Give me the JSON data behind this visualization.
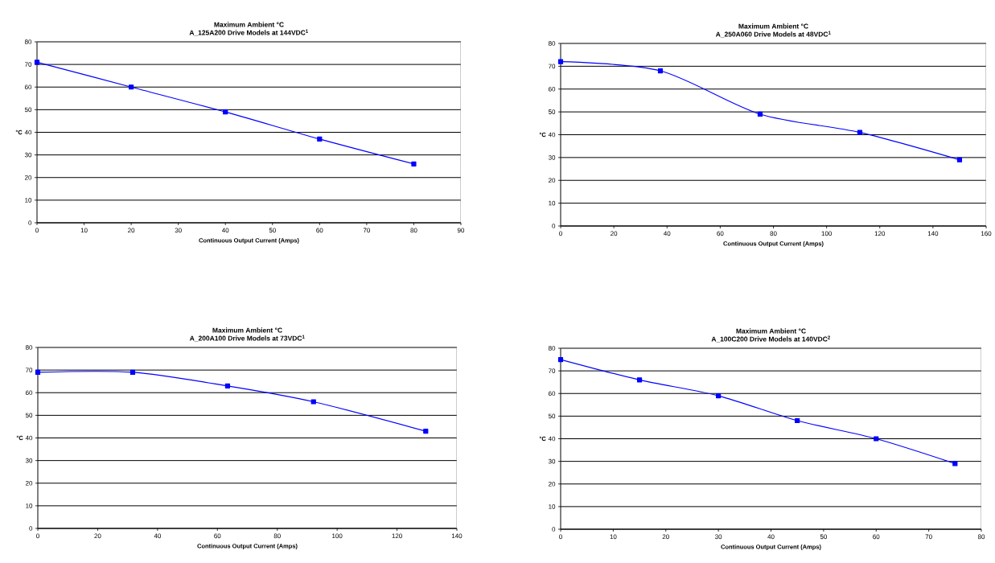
{
  "chart_data": [
    {
      "type": "line",
      "title": "Maximum Ambient °C",
      "subtitle": "A_125A200 Drive Models at 144VDC$^{1}$",
      "xlabel": "Continuous Output Current (Amps)",
      "ylabel": "°C",
      "x": [
        0,
        20,
        40,
        60,
        80
      ],
      "series": [
        {
          "color": "#0000ff",
          "values": [
            71,
            60,
            49,
            37,
            26
          ]
        }
      ],
      "xlim": [
        0,
        90
      ],
      "xticks": [
        0,
        10,
        20,
        30,
        40,
        50,
        60,
        70,
        80,
        90
      ],
      "ylim": [
        0,
        80
      ],
      "yticks": [
        0,
        10,
        20,
        30,
        40,
        50,
        60,
        70,
        80
      ],
      "grid": "y",
      "marker": "square"
    },
    {
      "type": "line",
      "title": "Maximum Ambient °C",
      "subtitle": "A_250A060 Drive Models at 48VDC$^{1}$",
      "xlabel": "Continuous Output Current (Amps)",
      "ylabel": "°C",
      "x": [
        0,
        37.5,
        75,
        112.5,
        150
      ],
      "series": [
        {
          "color": "#0000ff",
          "values": [
            72,
            68,
            49,
            41,
            29
          ]
        }
      ],
      "xlim": [
        0,
        160
      ],
      "xticks": [
        0,
        20,
        40,
        60,
        80,
        100,
        120,
        140,
        160
      ],
      "ylim": [
        0,
        80
      ],
      "yticks": [
        0,
        10,
        20,
        30,
        40,
        50,
        60,
        70,
        80
      ],
      "grid": "y",
      "marker": "square"
    },
    {
      "type": "line",
      "title": "Maximum Ambient °C",
      "subtitle": "A_200A100 Drive Models at 73VDC$^{1}$",
      "xlabel": "Continuous Output Current (Amps)",
      "ylabel": "°C",
      "x": [
        0,
        31.7,
        63.4,
        92.1,
        129.6
      ],
      "series": [
        {
          "color": "#0000ff",
          "values": [
            69,
            69,
            63,
            56,
            43
          ]
        }
      ],
      "xlim": [
        0,
        140
      ],
      "xticks": [
        0,
        20,
        40,
        60,
        80,
        100,
        120,
        140
      ],
      "ylim": [
        0,
        80
      ],
      "yticks": [
        0,
        10,
        20,
        30,
        40,
        50,
        60,
        70,
        80
      ],
      "grid": "y",
      "marker": "square"
    },
    {
      "type": "line",
      "title": "Maximum Ambient °C",
      "subtitle": "A_100C200 Drive Models at 140VDC$^{2}$",
      "xlabel": "Continuous Output Current (Amps)",
      "ylabel": "°C",
      "x": [
        0,
        15,
        30,
        45,
        60,
        75
      ],
      "series": [
        {
          "color": "#0000ff",
          "values": [
            75,
            66,
            59,
            48,
            40,
            29
          ]
        }
      ],
      "xlim": [
        0,
        80
      ],
      "xticks": [
        0,
        10,
        20,
        30,
        40,
        50,
        60,
        70,
        80
      ],
      "ylim": [
        0,
        80
      ],
      "yticks": [
        0,
        10,
        20,
        30,
        40,
        50,
        60,
        70,
        80
      ],
      "grid": "y",
      "marker": "square"
    }
  ]
}
